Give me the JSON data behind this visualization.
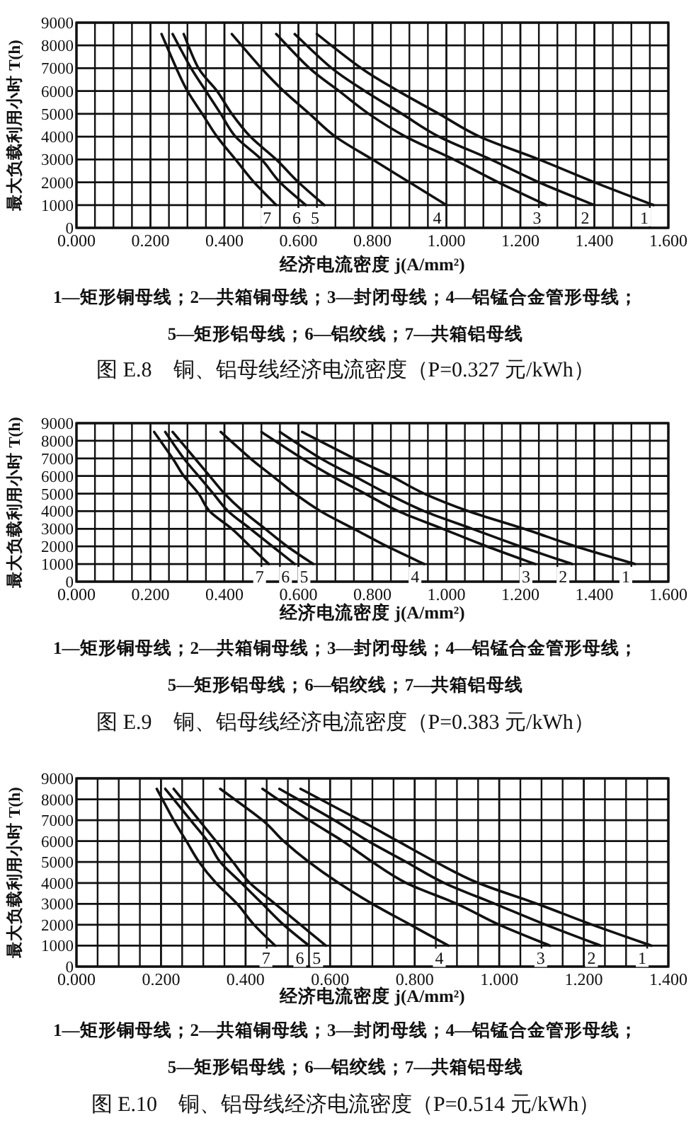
{
  "chart_data": [
    {
      "type": "line",
      "title": "图 E.8　铜、铝母线经济电流密度（P=0.327 元/kWh）",
      "xlabel": "经济电流密度 j(A/mm²)",
      "ylabel": "最大负载利用小时 T(h)",
      "xlim": [
        0,
        1.6
      ],
      "xticks": [
        {
          "value": 0,
          "label": "0.000"
        },
        {
          "value": 0.2,
          "label": "0.200"
        },
        {
          "value": 0.4,
          "label": "0.400"
        },
        {
          "value": 0.6,
          "label": "0.600"
        },
        {
          "value": 0.8,
          "label": "0.800"
        },
        {
          "value": 1.0,
          "label": "1.000"
        },
        {
          "value": 1.2,
          "label": "1.200"
        },
        {
          "value": 1.4,
          "label": "1.400"
        },
        {
          "value": 1.6,
          "label": "1.600"
        }
      ],
      "ylim": [
        0,
        9000
      ],
      "yticks": [
        0,
        1000,
        2000,
        3000,
        4000,
        5000,
        6000,
        7000,
        8000,
        9000
      ],
      "grid": true,
      "legend": false,
      "line_style": "solid",
      "marker": "none",
      "series": [
        {
          "name": "1",
          "color": "#111111",
          "x": [
            0.65,
            0.77,
            0.87,
            0.98,
            1.09,
            1.25,
            1.4,
            1.56
          ],
          "values": [
            8500,
            7000,
            6000,
            5000,
            4000,
            3000,
            2000,
            1000
          ]
        },
        {
          "name": "2",
          "color": "#111111",
          "x": [
            0.59,
            0.69,
            0.78,
            0.88,
            0.98,
            1.12,
            1.25,
            1.4
          ],
          "values": [
            8500,
            7000,
            6000,
            5000,
            4000,
            3000,
            2000,
            1000
          ]
        },
        {
          "name": "3",
          "color": "#111111",
          "x": [
            0.54,
            0.63,
            0.71,
            0.79,
            0.89,
            1.02,
            1.14,
            1.27
          ],
          "values": [
            8500,
            7000,
            6000,
            5000,
            4000,
            3000,
            2000,
            1000
          ]
        },
        {
          "name": "4",
          "color": "#111111",
          "x": [
            0.42,
            0.5,
            0.56,
            0.63,
            0.7,
            0.8,
            0.9,
            1.0
          ],
          "values": [
            8500,
            7000,
            6000,
            5000,
            4000,
            3000,
            2000,
            1000
          ]
        },
        {
          "name": "5",
          "color": "#111111",
          "x": [
            0.29,
            0.33,
            0.38,
            0.42,
            0.47,
            0.54,
            0.6,
            0.67
          ],
          "values": [
            8500,
            7000,
            6000,
            5000,
            4000,
            3000,
            2000,
            1000
          ]
        },
        {
          "name": "6",
          "color": "#111111",
          "x": [
            0.26,
            0.31,
            0.35,
            0.39,
            0.43,
            0.5,
            0.55,
            0.62
          ],
          "values": [
            8500,
            7000,
            6000,
            5000,
            4000,
            3000,
            2000,
            1000
          ]
        },
        {
          "name": "7",
          "color": "#111111",
          "x": [
            0.23,
            0.27,
            0.3,
            0.34,
            0.38,
            0.43,
            0.48,
            0.54
          ],
          "values": [
            8500,
            7000,
            6000,
            5000,
            4000,
            3000,
            2000,
            1000
          ]
        }
      ],
      "annotations": [
        "1—矩形铜母线；2—共箱铜母线；3—封闭母线；4—铝锰合金管形母线；",
        "5—矩形铝母线；6—铝绞线；7—共箱铝母线"
      ]
    },
    {
      "type": "line",
      "title": "图 E.9　铜、铝母线经济电流密度（P=0.383 元/kWh）",
      "xlabel": "经济电流密度 j(A/mm²)",
      "ylabel": "最大负载利用小时 T(h)",
      "xlim": [
        0,
        1.6
      ],
      "xticks": [
        {
          "value": 0,
          "label": "0.000"
        },
        {
          "value": 0.2,
          "label": "0.200"
        },
        {
          "value": 0.4,
          "label": "0.400"
        },
        {
          "value": 0.6,
          "label": "0.600"
        },
        {
          "value": 0.8,
          "label": "0.800"
        },
        {
          "value": 1.0,
          "label": "1.000"
        },
        {
          "value": 1.2,
          "label": "1.200"
        },
        {
          "value": 1.4,
          "label": "1.400"
        },
        {
          "value": 1.6,
          "label": "1.600"
        }
      ],
      "ylim": [
        0,
        9000
      ],
      "yticks": [
        0,
        1000,
        2000,
        3000,
        4000,
        5000,
        6000,
        7000,
        8000,
        9000
      ],
      "grid": true,
      "legend": false,
      "line_style": "solid",
      "marker": "none",
      "series": [
        {
          "name": "1",
          "color": "#111111",
          "x": [
            0.61,
            0.75,
            0.85,
            0.94,
            1.06,
            1.21,
            1.35,
            1.51
          ],
          "values": [
            8500,
            7000,
            6000,
            5000,
            4000,
            3000,
            2000,
            1000
          ]
        },
        {
          "name": "2",
          "color": "#111111",
          "x": [
            0.55,
            0.66,
            0.75,
            0.84,
            0.94,
            1.07,
            1.2,
            1.34
          ],
          "values": [
            8500,
            7000,
            6000,
            5000,
            4000,
            3000,
            2000,
            1000
          ]
        },
        {
          "name": "3",
          "color": "#111111",
          "x": [
            0.5,
            0.61,
            0.69,
            0.78,
            0.87,
            0.99,
            1.11,
            1.24
          ],
          "values": [
            8500,
            7000,
            6000,
            5000,
            4000,
            3000,
            2000,
            1000
          ]
        },
        {
          "name": "4",
          "color": "#111111",
          "x": [
            0.39,
            0.47,
            0.53,
            0.59,
            0.66,
            0.75,
            0.84,
            0.94
          ],
          "values": [
            8500,
            7000,
            6000,
            5000,
            4000,
            3000,
            2000,
            1000
          ]
        },
        {
          "name": "5",
          "color": "#111111",
          "x": [
            0.26,
            0.32,
            0.36,
            0.4,
            0.45,
            0.51,
            0.57,
            0.64
          ],
          "values": [
            8500,
            7000,
            6000,
            5000,
            4000,
            3000,
            2000,
            1000
          ]
        },
        {
          "name": "6",
          "color": "#111111",
          "x": [
            0.24,
            0.29,
            0.33,
            0.37,
            0.41,
            0.47,
            0.53,
            0.59
          ],
          "values": [
            8500,
            7000,
            6000,
            5000,
            4000,
            3000,
            2000,
            1000
          ]
        },
        {
          "name": "7",
          "color": "#111111",
          "x": [
            0.21,
            0.26,
            0.29,
            0.33,
            0.36,
            0.42,
            0.47,
            0.52
          ],
          "values": [
            8500,
            7000,
            6000,
            5000,
            4000,
            3000,
            2000,
            1000
          ]
        }
      ],
      "annotations": [
        "1—矩形铜母线；2—共箱铜母线；3—封闭母线；4—铝锰合金管形母线；",
        "5—矩形铝母线；6—铝绞线；7—共箱铝母线"
      ]
    },
    {
      "type": "line",
      "title": "图 E.10　铜、铝母线经济电流密度（P=0.514 元/kWh）",
      "xlabel": "经济电流密度 j(A/mm²)",
      "ylabel": "最大负载利用小时 T(h)",
      "xlim": [
        0,
        1.4
      ],
      "xticks": [
        {
          "value": 0,
          "label": "0.000"
        },
        {
          "value": 0.2,
          "label": "0.200"
        },
        {
          "value": 0.4,
          "label": "0.400"
        },
        {
          "value": 0.6,
          "label": "0.600"
        },
        {
          "value": 0.8,
          "label": "0.800"
        },
        {
          "value": 1.0,
          "label": "1.000"
        },
        {
          "value": 1.2,
          "label": "1.200"
        },
        {
          "value": 1.4,
          "label": "1.400"
        }
      ],
      "ylim": [
        0,
        9000
      ],
      "yticks": [
        0,
        1000,
        2000,
        3000,
        4000,
        5000,
        6000,
        7000,
        8000,
        9000
      ],
      "grid": true,
      "legend": false,
      "line_style": "solid",
      "marker": "none",
      "series": [
        {
          "name": "1",
          "color": "#111111",
          "x": [
            0.53,
            0.67,
            0.76,
            0.85,
            0.95,
            1.09,
            1.22,
            1.36
          ],
          "values": [
            8500,
            7000,
            6000,
            5000,
            4000,
            3000,
            2000,
            1000
          ]
        },
        {
          "name": "2",
          "color": "#111111",
          "x": [
            0.48,
            0.61,
            0.69,
            0.78,
            0.87,
            0.99,
            1.11,
            1.24
          ],
          "values": [
            8500,
            7000,
            6000,
            5000,
            4000,
            3000,
            2000,
            1000
          ]
        },
        {
          "name": "3",
          "color": "#111111",
          "x": [
            0.44,
            0.55,
            0.63,
            0.7,
            0.78,
            0.9,
            1.0,
            1.12
          ],
          "values": [
            8500,
            7000,
            6000,
            5000,
            4000,
            3000,
            2000,
            1000
          ]
        },
        {
          "name": "4",
          "color": "#111111",
          "x": [
            0.34,
            0.44,
            0.49,
            0.55,
            0.62,
            0.7,
            0.79,
            0.88
          ],
          "values": [
            8500,
            7000,
            6000,
            5000,
            4000,
            3000,
            2000,
            1000
          ]
        },
        {
          "name": "5",
          "color": "#111111",
          "x": [
            0.23,
            0.29,
            0.33,
            0.37,
            0.41,
            0.47,
            0.53,
            0.59
          ],
          "values": [
            8500,
            7000,
            6000,
            5000,
            4000,
            3000,
            2000,
            1000
          ]
        },
        {
          "name": "6",
          "color": "#111111",
          "x": [
            0.21,
            0.27,
            0.31,
            0.34,
            0.39,
            0.44,
            0.49,
            0.55
          ],
          "values": [
            8500,
            7000,
            6000,
            5000,
            4000,
            3000,
            2000,
            1000
          ]
        },
        {
          "name": "7",
          "color": "#111111",
          "x": [
            0.19,
            0.23,
            0.26,
            0.29,
            0.33,
            0.38,
            0.42,
            0.47
          ],
          "values": [
            8500,
            7000,
            6000,
            5000,
            4000,
            3000,
            2000,
            1000
          ]
        }
      ],
      "annotations": [
        "1—矩形铜母线；2—共箱铜母线；3—封闭母线；4—铝锰合金管形母线；",
        "5—矩形铝母线；6—铝绞线；7—共箱铝母线"
      ]
    }
  ]
}
